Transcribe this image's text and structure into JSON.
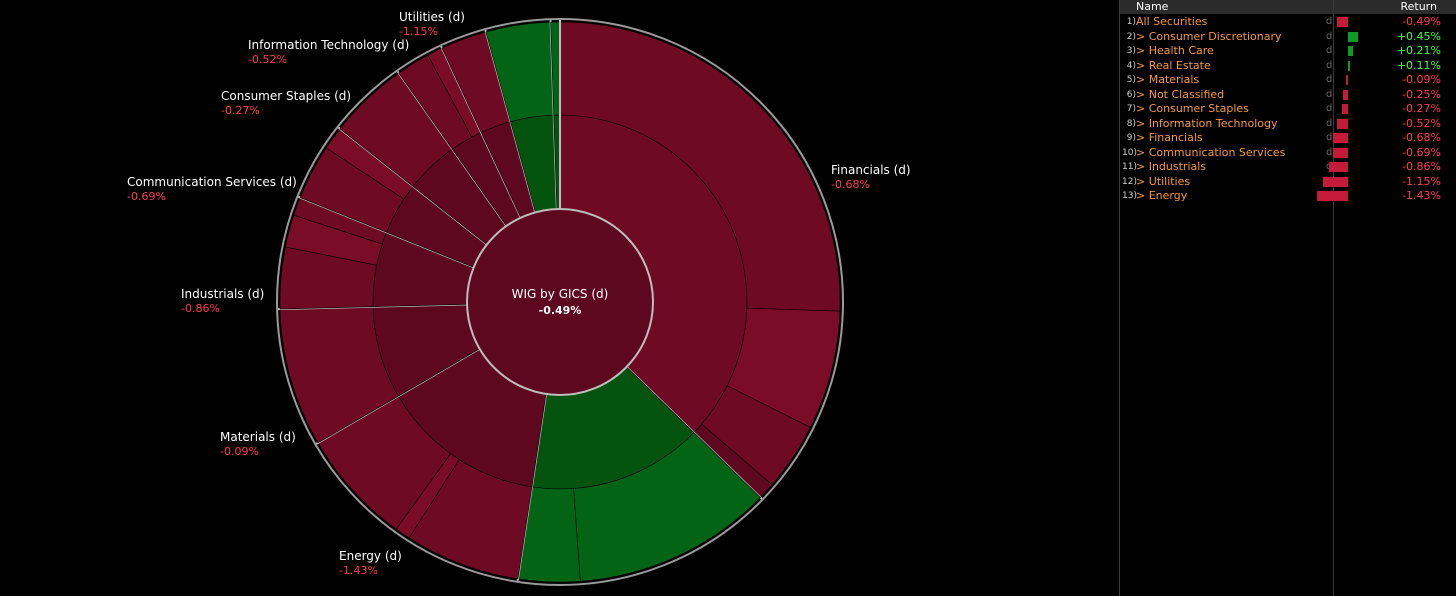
{
  "chart_data": {
    "type": "sunburst",
    "center": {
      "title": "WIG by GICS (d)",
      "value": "-0.49%"
    },
    "sectors": [
      {
        "name": "Financials (d)",
        "return": "-0.68%",
        "weight": 42.0,
        "subs": [
          26,
          7,
          4,
          1
        ]
      },
      {
        "name": "Consumer Discretionary",
        "return": "+0.45%",
        "weight": 17.0,
        "subs": [
          13,
          4
        ]
      },
      {
        "name": "Energy (d)",
        "return": "-1.43%",
        "weight": 16.0,
        "subs": [
          7.5,
          1,
          7.5
        ]
      },
      {
        "name": "Materials (d)",
        "return": "-0.09%",
        "weight": 9.0,
        "subs": [
          9
        ]
      },
      {
        "name": "Industrials (d)",
        "return": "-0.86%",
        "weight": 7.3,
        "subs": [
          4,
          2.1,
          1.2
        ]
      },
      {
        "name": "Communication Services (d)",
        "return": "-0.69%",
        "weight": 5.1,
        "subs": [
          3.6,
          1.5
        ]
      },
      {
        "name": "Consumer Staples (d)",
        "return": "-0.27%",
        "weight": 5.2,
        "subs": [
          5.2
        ]
      },
      {
        "name": "Information Technology (d)",
        "return": "-0.52%",
        "weight": 3.2,
        "subs": [
          2.2,
          1
        ]
      },
      {
        "name": "Utilities (d)",
        "return": "-1.15%",
        "weight": 3.0,
        "subs": [
          3
        ]
      },
      {
        "name": "Health Care",
        "return": "+0.21%",
        "weight": 4.2,
        "subs": [
          4.2
        ]
      },
      {
        "name": "Real Estate",
        "return": "+0.11%",
        "weight": 0.6,
        "subs": [
          0.6
        ]
      }
    ],
    "labels": [
      {
        "name": "Financials (d)",
        "value": "-0.68%"
      },
      {
        "name": "Energy (d)",
        "value": "-1.43%"
      },
      {
        "name": "Materials (d)",
        "value": "-0.09%"
      },
      {
        "name": "Industrials (d)",
        "value": "-0.86%"
      },
      {
        "name": "Communication Services (d)",
        "value": "-0.69%"
      },
      {
        "name": "Consumer Staples (d)",
        "value": "-0.27%"
      },
      {
        "name": "Information Technology (d)",
        "value": "-0.52%"
      },
      {
        "name": "Utilities (d)",
        "value": "-1.15%"
      }
    ]
  },
  "colors": {
    "neg_dark": "#5e0820",
    "neg_mid": "#6e0a24",
    "neg_light": "#7a0c28",
    "pos_dark": "#04530f",
    "pos_light": "#046416",
    "bar_neg": "#c41b3a",
    "bar_pos": "#0e9a26",
    "val_neg": "#ff3b52",
    "val_pos": "#3dff3d",
    "name_orange": "#f39a3c"
  },
  "table": {
    "header": {
      "name": "Name",
      "return": "Return"
    },
    "rows": [
      {
        "num": "1)",
        "name": "All Securities",
        "d": "d",
        "return": "-0.49%",
        "value": -0.49
      },
      {
        "num": "2)",
        "name": "> Consumer Discretionary",
        "d": "d",
        "return": "+0.45%",
        "value": 0.45
      },
      {
        "num": "3)",
        "name": "> Health Care",
        "d": "d",
        "return": "+0.21%",
        "value": 0.21
      },
      {
        "num": "4)",
        "name": "> Real Estate",
        "d": "d",
        "return": "+0.11%",
        "value": 0.11
      },
      {
        "num": "5)",
        "name": "> Materials",
        "d": "d",
        "return": "-0.09%",
        "value": -0.09
      },
      {
        "num": "6)",
        "name": "> Not Classified",
        "d": "d",
        "return": "-0.25%",
        "value": -0.25
      },
      {
        "num": "7)",
        "name": "> Consumer Staples",
        "d": "d",
        "return": "-0.27%",
        "value": -0.27
      },
      {
        "num": "8)",
        "name": "> Information Technology",
        "d": "d",
        "return": "-0.52%",
        "value": -0.52
      },
      {
        "num": "9)",
        "name": "> Financials",
        "d": "d",
        "return": "-0.68%",
        "value": -0.68
      },
      {
        "num": "10)",
        "name": "> Communication Services",
        "d": "d",
        "return": "-0.69%",
        "value": -0.69
      },
      {
        "num": "11)",
        "name": "> Industrials",
        "d": "d",
        "return": "-0.86%",
        "value": -0.86
      },
      {
        "num": "12)",
        "name": "> Utilities",
        "d": "d",
        "return": "-1.15%",
        "value": -1.15
      },
      {
        "num": "13)",
        "name": "> Energy",
        "d": "d",
        "return": "-1.43%",
        "value": -1.43
      }
    ]
  }
}
